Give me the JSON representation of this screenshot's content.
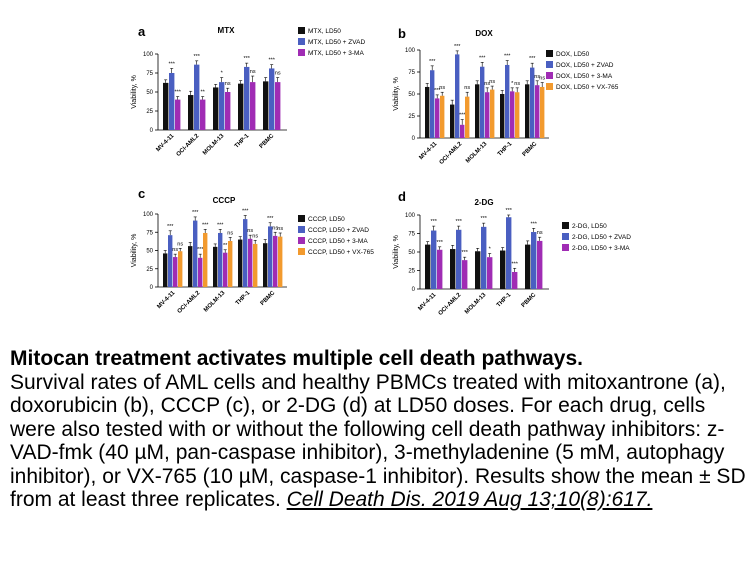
{
  "colors": {
    "blue": "#4a5fc1",
    "purple": "#a02cb4",
    "orange": "#f29a2e",
    "black": "#111111"
  },
  "chart_data": [
    {
      "type": "bar",
      "panel": "a",
      "title": "MTX",
      "ylabel": "Viability, %",
      "yticks": [
        "0",
        "25",
        "50",
        "75",
        "100"
      ],
      "ylim": [
        0,
        100
      ],
      "categories": [
        "MV-4-11",
        "OCI-AML2",
        "MOLM-13",
        "THP-1",
        "PBMC"
      ],
      "series": [
        {
          "name": "MTX, LD50",
          "color": "black",
          "values": [
            62,
            46,
            56,
            61,
            64
          ],
          "errors": [
            4,
            5,
            4,
            4,
            5
          ]
        },
        {
          "name": "MTX, LD50 + ZVAD",
          "color": "blue",
          "values": [
            75,
            86,
            63,
            83,
            81
          ],
          "errors": [
            6,
            5,
            6,
            5,
            5
          ]
        },
        {
          "name": "MTX, LD50 + 3-MA",
          "color": "purple",
          "values": [
            40,
            40,
            50,
            63,
            63
          ],
          "errors": [
            4,
            4,
            5,
            8,
            6
          ]
        }
      ],
      "annotations": [
        [
          "***",
          "***",
          ""
        ],
        [
          "***",
          "**",
          "***"
        ],
        [
          "*",
          "ns",
          ""
        ],
        [
          "***",
          "ns",
          ""
        ],
        [
          "***",
          "ns",
          ""
        ]
      ]
    },
    {
      "type": "bar",
      "panel": "b",
      "title": "DOX",
      "ylabel": "Viability, %",
      "yticks": [
        "0",
        "25",
        "50",
        "75",
        "100"
      ],
      "ylim": [
        0,
        100
      ],
      "categories": [
        "MV-4-11",
        "OCI-AML2",
        "MOLM-13",
        "THP-1",
        "PBMC"
      ],
      "series": [
        {
          "name": "DOX, LD50",
          "color": "black",
          "values": [
            58,
            38,
            61,
            50,
            61
          ],
          "errors": [
            4,
            5,
            4,
            4,
            4
          ]
        },
        {
          "name": "DOX, LD50 + ZVAD",
          "color": "blue",
          "values": [
            77,
            95,
            81,
            83,
            80
          ],
          "errors": [
            5,
            4,
            5,
            5,
            5
          ]
        },
        {
          "name": "DOX, LD50 + 3-MA",
          "color": "purple",
          "values": [
            45,
            15,
            52,
            53,
            60
          ],
          "errors": [
            4,
            6,
            5,
            4,
            5
          ]
        },
        {
          "name": "DOX, LD50 + VX-765",
          "color": "orange",
          "values": [
            48,
            47,
            55,
            52,
            58
          ],
          "errors": [
            4,
            5,
            4,
            5,
            5
          ]
        }
      ],
      "annotations": [
        [
          "***",
          "***",
          "ns"
        ],
        [
          "***",
          "***",
          "ns"
        ],
        [
          "***",
          "ns",
          "ns"
        ],
        [
          "***",
          "*",
          "ns"
        ],
        [
          "***",
          "ns",
          "ns"
        ]
      ]
    },
    {
      "type": "bar",
      "panel": "c",
      "title": "CCCP",
      "ylabel": "Viability, %",
      "yticks": [
        "0",
        "25",
        "50",
        "75",
        "100"
      ],
      "ylim": [
        0,
        100
      ],
      "categories": [
        "MV-4-11",
        "OCI-AML2",
        "MOLM-13",
        "THP-1",
        "PBMC"
      ],
      "series": [
        {
          "name": "CCCP, LD50",
          "color": "black",
          "values": [
            46,
            56,
            55,
            65,
            60
          ],
          "errors": [
            4,
            5,
            4,
            4,
            5
          ]
        },
        {
          "name": "CCCP, LD50 + ZVAD",
          "color": "blue",
          "values": [
            71,
            91,
            74,
            93,
            83
          ],
          "errors": [
            6,
            5,
            5,
            5,
            5
          ]
        },
        {
          "name": "CCCP, LD50 + 3-MA",
          "color": "purple",
          "values": [
            41,
            40,
            47,
            66,
            70
          ],
          "errors": [
            4,
            5,
            4,
            5,
            5
          ]
        },
        {
          "name": "CCCP, LD50 + VX-765",
          "color": "orange",
          "values": [
            49,
            74,
            63,
            59,
            69
          ],
          "errors": [
            4,
            5,
            5,
            5,
            5
          ]
        }
      ],
      "annotations": [
        [
          "***",
          "ns",
          "ns"
        ],
        [
          "***",
          "***",
          "***"
        ],
        [
          "***",
          "**",
          "ns"
        ],
        [
          "***",
          "ns",
          "ns"
        ],
        [
          "***",
          "ns",
          "ns"
        ]
      ]
    },
    {
      "type": "bar",
      "panel": "d",
      "title": "2-DG",
      "ylabel": "Viability, %",
      "yticks": [
        "0",
        "25",
        "50",
        "75",
        "100"
      ],
      "ylim": [
        0,
        100
      ],
      "categories": [
        "MV-4-11",
        "OCI-AML2",
        "MOLM-13",
        "THP-1",
        "PBMC"
      ],
      "series": [
        {
          "name": "2-DG, LD50",
          "color": "black",
          "values": [
            60,
            54,
            51,
            52,
            60
          ],
          "errors": [
            4,
            5,
            4,
            4,
            5
          ]
        },
        {
          "name": "2-DG, LD50 + ZVAD",
          "color": "blue",
          "values": [
            79,
            80,
            84,
            97,
            77
          ],
          "errors": [
            6,
            5,
            5,
            3,
            5
          ]
        },
        {
          "name": "2-DG, LD50 + 3-MA",
          "color": "purple",
          "values": [
            53,
            39,
            43,
            23,
            65
          ],
          "errors": [
            4,
            4,
            5,
            5,
            5
          ]
        }
      ],
      "annotations": [
        [
          "***",
          "***",
          ""
        ],
        [
          "***",
          "***",
          ""
        ],
        [
          "***",
          "*",
          ""
        ],
        [
          "***",
          "***",
          ""
        ],
        [
          "***",
          "ns",
          ""
        ]
      ]
    }
  ],
  "caption": {
    "title": "Mitocan treatment activates multiple cell death pathways.",
    "body": "Survival rates of AML cells and healthy PBMCs treated with mitoxantrone (a), doxorubicin (b), CCCP (c), or 2-DG (d) at LD50 doses. For each drug, cells were also tested with or without the following cell death pathway inhibitors: z-VAD-fmk (40 µM, pan-caspase inhibitor), 3-methyladenine (5 mM, autophagy inhibitor), or VX-765 (10 µM, caspase-1 inhibitor). Results show the mean ± SD from at least three replicates.",
    "citation": "Cell Death Dis. 2019 Aug 13;10(8):617."
  }
}
